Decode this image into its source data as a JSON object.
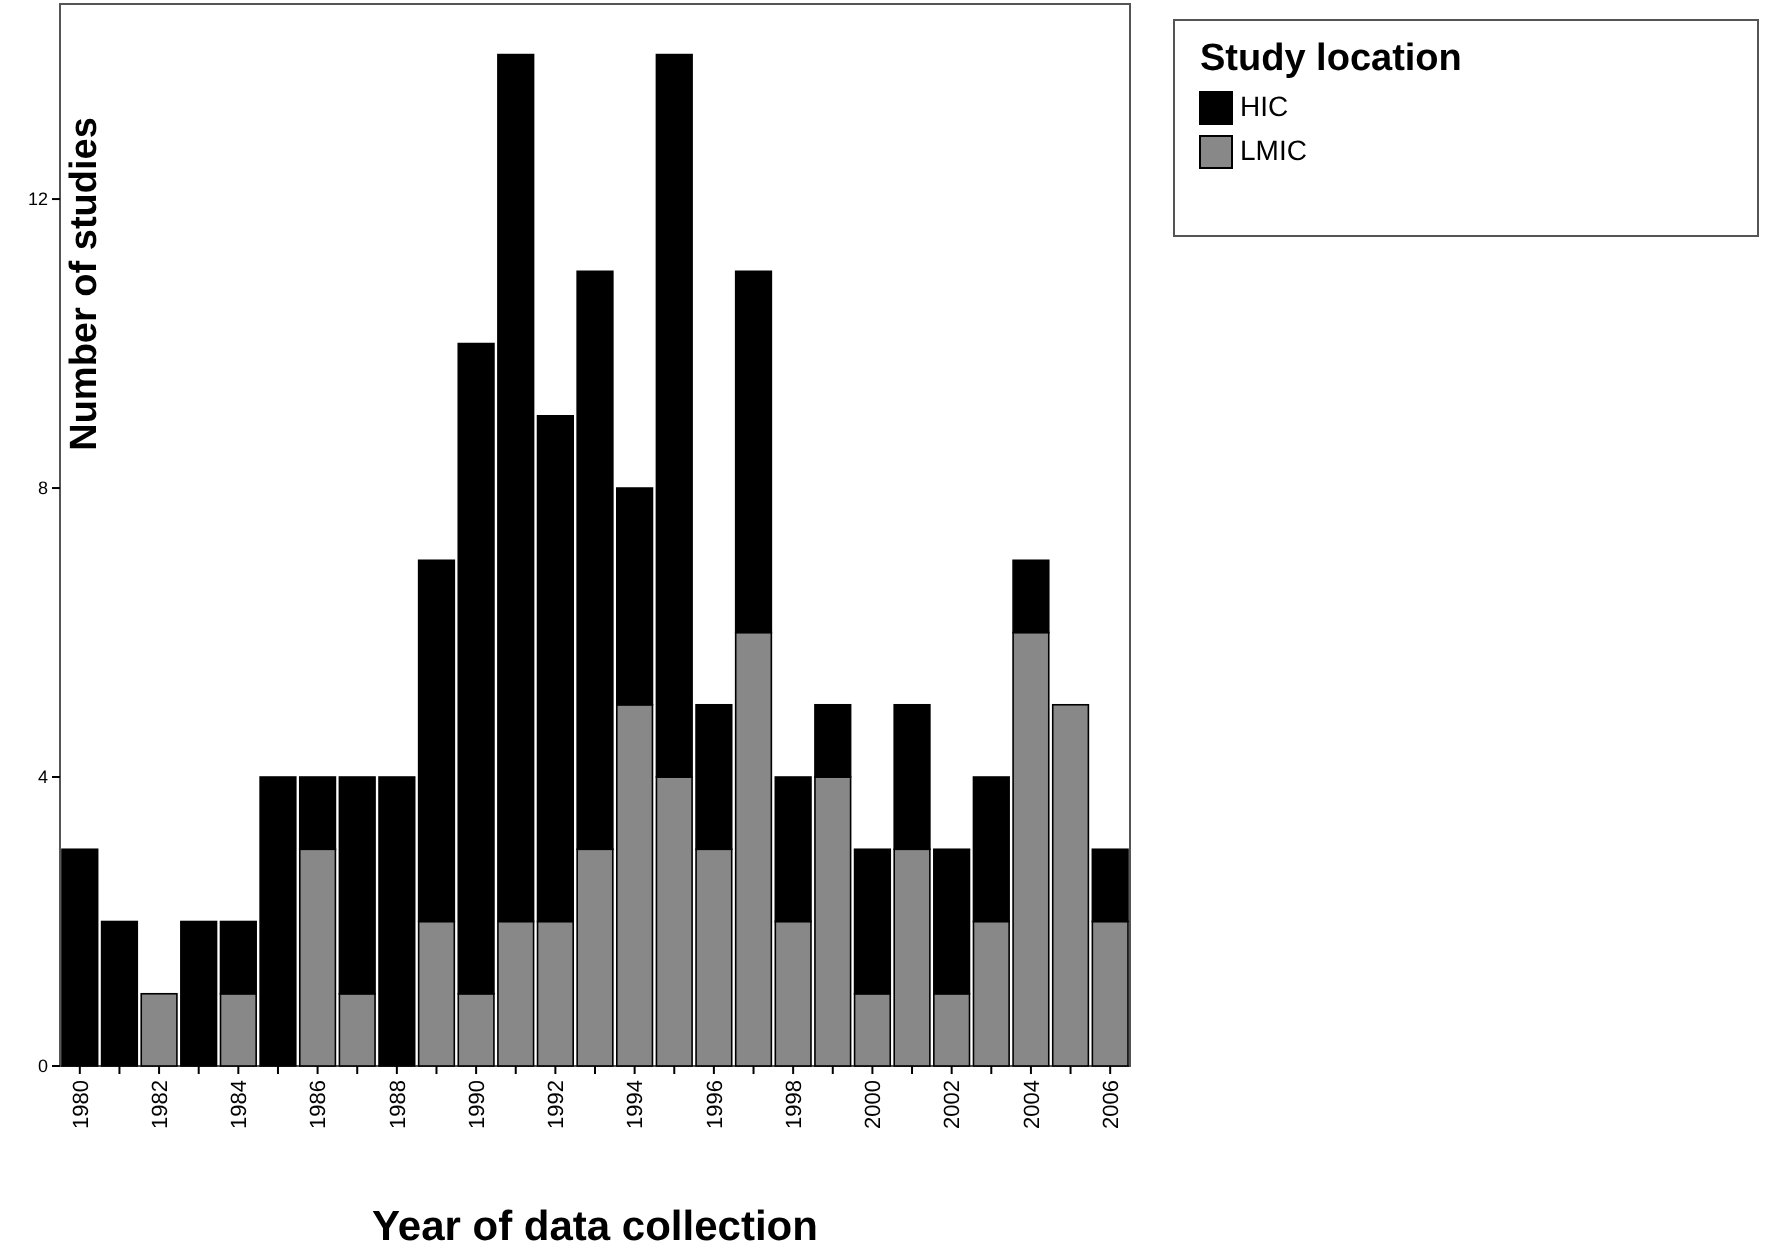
{
  "chart_data": {
    "type": "bar",
    "stacked": true,
    "xlabel": "Year of data collection",
    "ylabel": "Number of studies",
    "legend_title": "Study location",
    "legend": "top right",
    "categories": [
      "1980",
      null,
      "1982",
      null,
      "1984",
      null,
      "1986",
      null,
      "1988",
      null,
      "1990",
      null,
      "1992",
      null,
      "1994",
      null,
      "1996",
      null,
      "1998",
      null,
      "2000",
      null,
      "2002",
      null,
      "2004",
      null,
      "2006"
    ],
    "series": [
      {
        "name": "LMIC",
        "color": "#888888",
        "values": [
          0,
          0,
          1,
          0,
          1,
          0,
          3,
          1,
          0,
          2,
          1,
          2,
          2,
          3,
          5,
          4,
          3,
          6,
          2,
          4,
          1,
          3,
          1,
          2,
          6,
          5,
          2
        ]
      },
      {
        "name": "HIC",
        "color": "#000000",
        "values": [
          3,
          2,
          0,
          2,
          1,
          4,
          1,
          3,
          4,
          5,
          9,
          12,
          7,
          8,
          3,
          10,
          2,
          5,
          2,
          1,
          2,
          2,
          2,
          2,
          1,
          0,
          1
        ]
      }
    ],
    "ylim": [
      0,
      14.7
    ],
    "yticks": [
      0,
      4,
      8,
      12
    ],
    "grid": false
  }
}
